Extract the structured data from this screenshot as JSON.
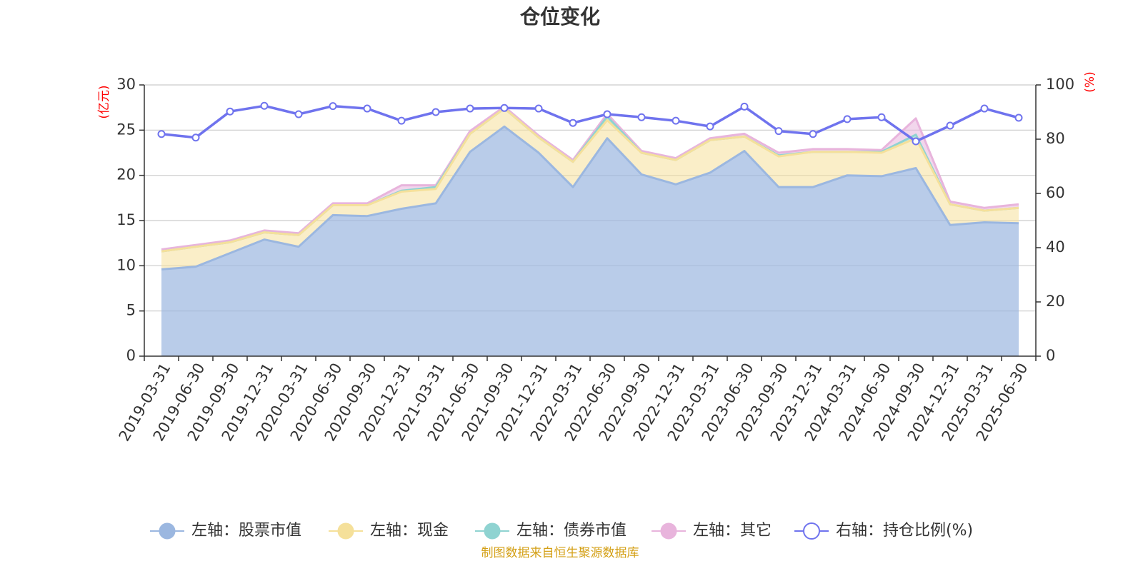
{
  "chart_data": {
    "type": "area",
    "title": "仓位变化",
    "source": "制图数据来自恒生聚源数据库",
    "left_axis": {
      "unit": "(亿元)",
      "ylim": [
        0,
        30
      ],
      "ticks": [
        0,
        5,
        10,
        15,
        20,
        25,
        30
      ]
    },
    "right_axis": {
      "unit": "(%)",
      "ylim": [
        0,
        100
      ],
      "ticks": [
        0,
        20,
        40,
        60,
        80,
        100
      ]
    },
    "categories": [
      "2019-03-31",
      "2019-06-30",
      "2019-09-30",
      "2019-12-31",
      "2020-03-31",
      "2020-06-30",
      "2020-09-30",
      "2020-12-31",
      "2021-03-31",
      "2021-06-30",
      "2021-09-30",
      "2021-12-31",
      "2022-03-31",
      "2022-06-30",
      "2022-09-30",
      "2022-12-31",
      "2023-03-31",
      "2023-06-30",
      "2023-09-30",
      "2023-12-31",
      "2024-03-31",
      "2024-06-30",
      "2024-09-30",
      "2024-12-31",
      "2025-03-31",
      "2025-06-30"
    ],
    "series": [
      {
        "name": "左轴：股票市值",
        "axis": "left",
        "color": "#9bb7e0",
        "values": [
          9.6,
          9.9,
          11.4,
          12.9,
          12.1,
          15.6,
          15.5,
          16.3,
          16.9,
          22.6,
          25.4,
          22.5,
          18.7,
          24.1,
          20.1,
          19.0,
          20.3,
          22.7,
          18.7,
          18.7,
          20.0,
          19.9,
          20.8,
          14.5,
          14.8,
          14.7
        ]
      },
      {
        "name": "左轴：现金",
        "axis": "left",
        "color": "#f5e09a",
        "values": [
          2.0,
          2.2,
          1.2,
          0.8,
          1.3,
          1.1,
          1.2,
          1.9,
          1.6,
          2.0,
          2.0,
          1.7,
          2.8,
          2.0,
          2.4,
          2.7,
          3.6,
          1.6,
          3.4,
          3.9,
          2.6,
          2.6,
          3.3,
          2.3,
          1.3,
          1.7
        ]
      },
      {
        "name": "左轴：债券市值",
        "axis": "left",
        "color": "#8fd3d1",
        "values": [
          0,
          0,
          0,
          0,
          0,
          0,
          0,
          0.1,
          0.2,
          0,
          0,
          0,
          0,
          0.4,
          0,
          0,
          0,
          0,
          0.1,
          0,
          0,
          0.1,
          0.4,
          0,
          0,
          0
        ]
      },
      {
        "name": "左轴：其它",
        "axis": "left",
        "color": "#e8b4dc",
        "values": [
          0.2,
          0.2,
          0.2,
          0.2,
          0.2,
          0.2,
          0.2,
          0.6,
          0.2,
          0.3,
          0.2,
          0.2,
          0.2,
          0.3,
          0.2,
          0.2,
          0.2,
          0.3,
          0.3,
          0.3,
          0.3,
          0.2,
          1.8,
          0.3,
          0.3,
          0.4
        ]
      },
      {
        "name": "右轴：持仓比例(%)",
        "axis": "right",
        "color": "#6f73ee",
        "values": [
          81.9,
          80.6,
          90.2,
          92.3,
          89.2,
          92.2,
          91.3,
          86.8,
          90.0,
          91.3,
          91.5,
          91.3,
          86.0,
          89.2,
          88.1,
          86.8,
          84.7,
          92.0,
          83.0,
          81.9,
          87.4,
          88.1,
          79.2,
          85.0,
          91.3,
          87.9
        ]
      }
    ]
  }
}
